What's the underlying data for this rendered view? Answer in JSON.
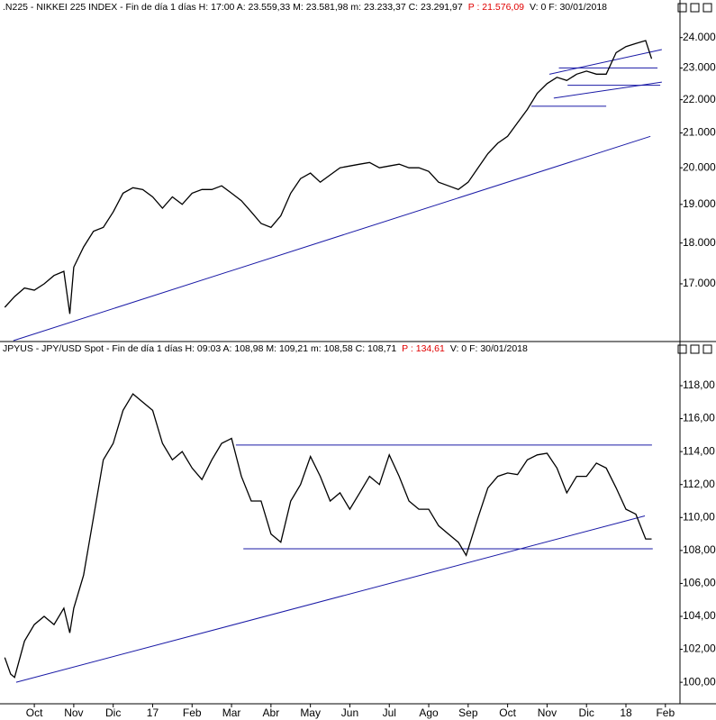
{
  "chart_data": [
    {
      "type": "line",
      "header": ".N225 - NIKKEI 225 INDEX - Fin de día 1 días  H: 17:00  A: 23.559,33  M: 23.581,98  m: 23.233,37  C: 23.291,97",
      "header_p": "P : 21.576,09",
      "header_tail": "V: 0  F: 30/01/2018",
      "log_scale": true,
      "xlim": [
        -0.87,
        16.37
      ],
      "ylim": [
        15700,
        24760
      ],
      "yticks": [
        {
          "value": 17000,
          "label": "17.000,00"
        },
        {
          "value": 18000,
          "label": "18.000,00"
        },
        {
          "value": 19000,
          "label": "19.000,00"
        },
        {
          "value": 20000,
          "label": "20.000,00"
        },
        {
          "value": 21000,
          "label": "21.000,00"
        },
        {
          "value": 22000,
          "label": "22.000,00"
        },
        {
          "value": 23000,
          "label": "23.000,00"
        },
        {
          "value": 24000,
          "label": "24.000,00"
        }
      ],
      "series": [
        {
          "color": "#000000",
          "x": [
            -0.75,
            -0.5,
            -0.25,
            0,
            0.25,
            0.5,
            0.75,
            0.9,
            1.0,
            1.25,
            1.5,
            1.75,
            2.0,
            2.25,
            2.5,
            2.75,
            3.0,
            3.25,
            3.5,
            3.75,
            4.0,
            4.25,
            4.5,
            4.75,
            5.0,
            5.25,
            5.5,
            5.75,
            6.0,
            6.25,
            6.5,
            6.75,
            7.0,
            7.25,
            7.5,
            7.75,
            8.0,
            8.25,
            8.5,
            8.75,
            9.0,
            9.25,
            9.5,
            9.75,
            10.0,
            10.25,
            10.5,
            10.75,
            11.0,
            11.25,
            11.5,
            11.75,
            12.0,
            12.25,
            12.5,
            12.75,
            13.0,
            13.25,
            13.5,
            13.75,
            14.0,
            14.25,
            14.5,
            14.75,
            15.0,
            15.25,
            15.5,
            15.65
          ],
          "values": [
            16450,
            16700,
            16900,
            16850,
            17000,
            17200,
            17300,
            16300,
            17400,
            17900,
            18300,
            18400,
            18800,
            19300,
            19450,
            19400,
            19200,
            18900,
            19200,
            19000,
            19300,
            19400,
            19400,
            19500,
            19300,
            19100,
            18800,
            18500,
            18400,
            18700,
            19300,
            19700,
            19850,
            19600,
            19800,
            20000,
            20050,
            20100,
            20150,
            20000,
            20050,
            20100,
            20000,
            20000,
            19900,
            19600,
            19500,
            19400,
            19600,
            20000,
            20400,
            20700,
            20900,
            21300,
            21700,
            22200,
            22500,
            22700,
            22600,
            22800,
            22900,
            22800,
            22800,
            23500,
            23700,
            23800,
            23900,
            23300
          ]
        }
      ],
      "trend_color": "#1a1aa6",
      "trend_lines": [
        {
          "x": [
            -0.53,
            15.62
          ],
          "y": [
            15700,
            20900
          ]
        },
        {
          "x": [
            13.06,
            15.91
          ],
          "y": [
            22800,
            23600
          ]
        },
        {
          "x": [
            13.17,
            15.91
          ],
          "y": [
            22050,
            22550
          ]
        },
        {
          "x": [
            13.3,
            15.8
          ],
          "y": [
            23000,
            23000
          ]
        },
        {
          "x": [
            13.52,
            15.87
          ],
          "y": [
            22450,
            22450
          ]
        },
        {
          "x": [
            12.6,
            14.5
          ],
          "y": [
            21800,
            21800
          ]
        }
      ]
    },
    {
      "type": "line",
      "header": "JPYUS - JPY/USD Spot - Fin de día 1 días  H: 09:03  A: 108,98  M: 109,21  m: 108,58  C: 108,71",
      "header_p": "P : 134,61",
      "header_tail": "V: 0  F: 30/01/2018",
      "log_scale": false,
      "xlim": [
        -0.87,
        16.37
      ],
      "ylim": [
        98.75,
        119.75
      ],
      "yticks": [
        {
          "value": 100,
          "label": "100,00"
        },
        {
          "value": 102,
          "label": "102,00"
        },
        {
          "value": 104,
          "label": "104,00"
        },
        {
          "value": 106,
          "label": "106,00"
        },
        {
          "value": 108,
          "label": "108,00"
        },
        {
          "value": 110,
          "label": "110,00"
        },
        {
          "value": 112,
          "label": "112,00"
        },
        {
          "value": 114,
          "label": "114,00"
        },
        {
          "value": 116,
          "label": "116,00"
        },
        {
          "value": 118,
          "label": "118,00"
        }
      ],
      "xticks": [
        {
          "value": 0,
          "label": "Oct"
        },
        {
          "value": 1,
          "label": "Nov"
        },
        {
          "value": 2,
          "label": "Dic"
        },
        {
          "value": 3,
          "label": "17"
        },
        {
          "value": 4,
          "label": "Feb"
        },
        {
          "value": 5,
          "label": "Mar"
        },
        {
          "value": 6,
          "label": "Abr"
        },
        {
          "value": 7,
          "label": "May"
        },
        {
          "value": 8,
          "label": "Jun"
        },
        {
          "value": 9,
          "label": "Jul"
        },
        {
          "value": 10,
          "label": "Ago"
        },
        {
          "value": 11,
          "label": "Sep"
        },
        {
          "value": 12,
          "label": "Oct"
        },
        {
          "value": 13,
          "label": "Nov"
        },
        {
          "value": 14,
          "label": "Dic"
        },
        {
          "value": 15,
          "label": "18"
        },
        {
          "value": 16,
          "label": "Feb"
        }
      ],
      "series": [
        {
          "color": "#000000",
          "x": [
            -0.75,
            -0.6,
            -0.5,
            -0.25,
            0,
            0.25,
            0.5,
            0.75,
            0.9,
            1.0,
            1.25,
            1.5,
            1.75,
            2.0,
            2.25,
            2.5,
            2.75,
            3.0,
            3.25,
            3.5,
            3.75,
            4.0,
            4.25,
            4.5,
            4.75,
            5.0,
            5.25,
            5.5,
            5.75,
            6.0,
            6.25,
            6.5,
            6.75,
            7.0,
            7.25,
            7.5,
            7.75,
            8.0,
            8.25,
            8.5,
            8.75,
            9.0,
            9.25,
            9.5,
            9.75,
            10.0,
            10.25,
            10.5,
            10.75,
            10.95,
            11.25,
            11.5,
            11.75,
            12.0,
            12.25,
            12.5,
            12.75,
            13.0,
            13.25,
            13.5,
            13.75,
            14.0,
            14.25,
            14.5,
            14.75,
            15.0,
            15.25,
            15.5,
            15.65
          ],
          "values": [
            101.5,
            100.5,
            100.3,
            102.5,
            103.5,
            104.0,
            103.5,
            104.5,
            103.0,
            104.5,
            106.5,
            110,
            113.5,
            114.5,
            116.5,
            117.5,
            117.0,
            116.5,
            114.5,
            113.5,
            114.0,
            113.0,
            112.3,
            113.5,
            114.5,
            114.8,
            112.5,
            111.0,
            111.0,
            109,
            108.5,
            111.0,
            112.0,
            113.7,
            112.5,
            111.0,
            111.5,
            110.5,
            111.5,
            112.5,
            112.0,
            113.8,
            112.5,
            111.0,
            110.5,
            110.5,
            109.5,
            109.0,
            108.5,
            107.7,
            110.0,
            111.8,
            112.5,
            112.7,
            112.6,
            113.5,
            113.8,
            113.9,
            113.0,
            111.5,
            112.5,
            112.5,
            113.3,
            113.0,
            111.8,
            110.5,
            110.2,
            108.7,
            108.7
          ]
        }
      ],
      "trend_color": "#1a1aa6",
      "trend_lines": [
        {
          "x": [
            5.11,
            15.66
          ],
          "y": [
            114.4,
            114.4
          ]
        },
        {
          "x": [
            5.3,
            15.68
          ],
          "y": [
            108.1,
            108.1
          ]
        },
        {
          "x": [
            -0.46,
            15.48
          ],
          "y": [
            100.0,
            110.1
          ]
        }
      ]
    }
  ]
}
